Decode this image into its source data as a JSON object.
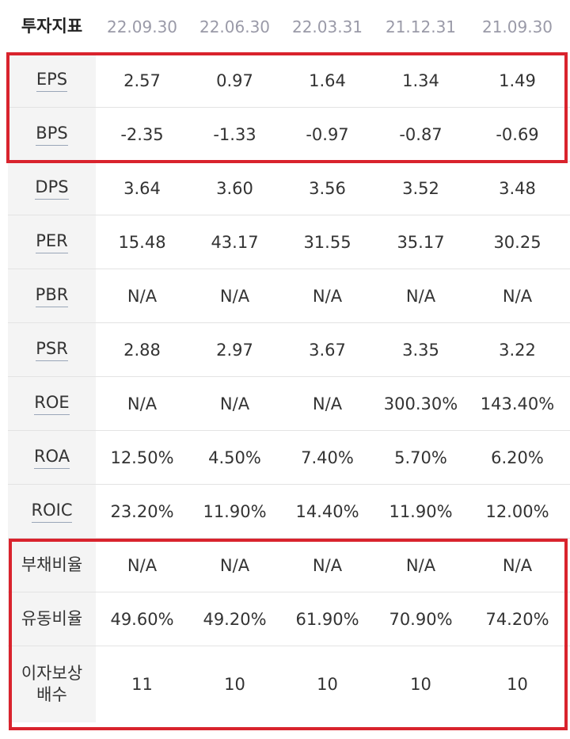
{
  "header": {
    "label": "투자지표",
    "dates": [
      "22.09.30",
      "22.06.30",
      "22.03.31",
      "21.12.31",
      "21.09.30"
    ]
  },
  "rows": [
    {
      "label": "EPS",
      "values": [
        "2.57",
        "0.97",
        "1.64",
        "1.34",
        "1.49"
      ]
    },
    {
      "label": "BPS",
      "values": [
        "-2.35",
        "-1.33",
        "-0.97",
        "-0.87",
        "-0.69"
      ]
    },
    {
      "label": "DPS",
      "values": [
        "3.64",
        "3.60",
        "3.56",
        "3.52",
        "3.48"
      ]
    },
    {
      "label": "PER",
      "values": [
        "15.48",
        "43.17",
        "31.55",
        "35.17",
        "30.25"
      ]
    },
    {
      "label": "PBR",
      "values": [
        "N/A",
        "N/A",
        "N/A",
        "N/A",
        "N/A"
      ]
    },
    {
      "label": "PSR",
      "values": [
        "2.88",
        "2.97",
        "3.67",
        "3.35",
        "3.22"
      ]
    },
    {
      "label": "ROE",
      "values": [
        "N/A",
        "N/A",
        "N/A",
        "300.30%",
        "143.40%"
      ]
    },
    {
      "label": "ROA",
      "values": [
        "12.50%",
        "4.50%",
        "7.40%",
        "5.70%",
        "6.20%"
      ]
    },
    {
      "label": "ROIC",
      "values": [
        "23.20%",
        "11.90%",
        "14.40%",
        "11.90%",
        "12.00%"
      ]
    },
    {
      "label": "부채비율",
      "values": [
        "N/A",
        "N/A",
        "N/A",
        "N/A",
        "N/A"
      ]
    },
    {
      "label": "유동비율",
      "values": [
        "49.60%",
        "49.20%",
        "61.90%",
        "70.90%",
        "74.20%"
      ]
    },
    {
      "label": "이자보상배수",
      "label_lines": [
        "이자보상",
        "배수"
      ],
      "values": [
        "11",
        "10",
        "10",
        "10",
        "10"
      ]
    }
  ],
  "highlight_color": "#d9232d"
}
